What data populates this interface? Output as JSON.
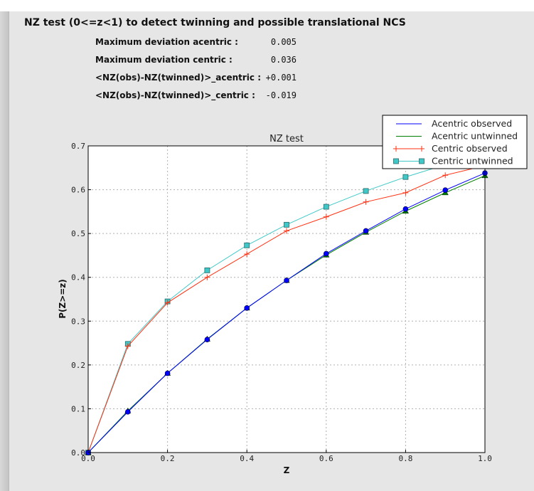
{
  "header": {
    "title": "NZ test (0<=z<1) to detect twinning and possible translational NCS"
  },
  "stats": [
    {
      "label": "Maximum deviation acentric :",
      "value": "0.005"
    },
    {
      "label": "Maximum deviation centric :",
      "value": "0.036"
    },
    {
      "label": "<NZ(obs)-NZ(twinned)>_acentric :",
      "value": "+0.001"
    },
    {
      "label": "<NZ(obs)-NZ(twinned)>_centric :",
      "value": "-0.019"
    }
  ],
  "chart_data": {
    "type": "line",
    "title": "NZ test",
    "xlabel": "Z",
    "ylabel": "P(Z>=z)",
    "xlim": [
      0.0,
      1.0
    ],
    "ylim": [
      0.0,
      0.7
    ],
    "grid": true,
    "legend_placement": "top-right",
    "xticks": [
      "0.0",
      "0.2",
      "0.4",
      "0.6",
      "0.8",
      "1.0"
    ],
    "yticks": [
      "0.0",
      "0.1",
      "0.2",
      "0.3",
      "0.4",
      "0.5",
      "0.6",
      "0.7"
    ],
    "x": [
      0.0,
      0.1,
      0.2,
      0.3,
      0.4,
      0.5,
      0.6,
      0.7,
      0.8,
      0.9,
      1.0
    ],
    "series": [
      {
        "name": "Acentric observed",
        "color": "#0000ff",
        "marker": "circle",
        "values": [
          0.0,
          0.093,
          0.181,
          0.258,
          0.33,
          0.393,
          0.454,
          0.506,
          0.556,
          0.599,
          0.638
        ]
      },
      {
        "name": "Acentric untwinned",
        "color": "#008000",
        "marker": "triangle",
        "values": [
          0.0,
          0.095,
          0.181,
          0.259,
          0.33,
          0.393,
          0.451,
          0.503,
          0.551,
          0.593,
          0.632
        ]
      },
      {
        "name": "Centric observed",
        "color": "#ff3010",
        "marker": "plus",
        "values": [
          0.0,
          0.243,
          0.342,
          0.4,
          0.453,
          0.506,
          0.538,
          0.572,
          0.593,
          0.633,
          0.655
        ]
      },
      {
        "name": "Centric untwinned",
        "color": "#40c8c8",
        "marker": "square",
        "values": [
          0.0,
          0.248,
          0.345,
          0.416,
          0.473,
          0.52,
          0.561,
          0.597,
          0.629,
          0.657,
          0.683
        ]
      }
    ]
  }
}
